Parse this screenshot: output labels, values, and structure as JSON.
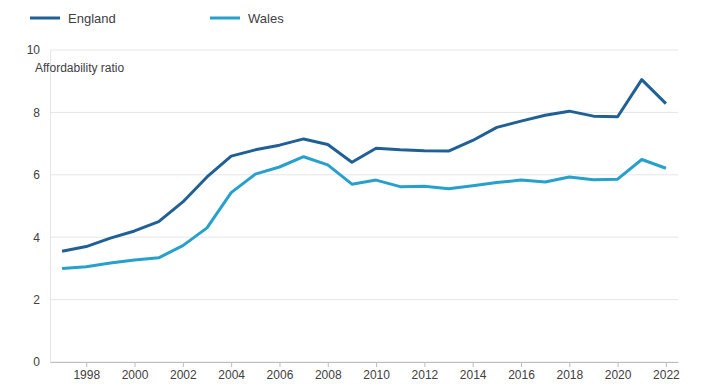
{
  "chart_data": {
    "type": "line",
    "y_label": "Affordability ratio",
    "x": [
      1997,
      1998,
      1999,
      2000,
      2001,
      2002,
      2003,
      2004,
      2005,
      2006,
      2007,
      2008,
      2009,
      2010,
      2011,
      2012,
      2013,
      2014,
      2015,
      2016,
      2017,
      2018,
      2019,
      2020,
      2021,
      2022
    ],
    "series": [
      {
        "name": "England",
        "color": "#206095",
        "values": [
          3.55,
          3.7,
          3.97,
          4.2,
          4.5,
          5.13,
          5.93,
          6.6,
          6.8,
          6.95,
          7.15,
          6.97,
          6.4,
          6.85,
          6.8,
          6.77,
          6.76,
          7.1,
          7.52,
          7.72,
          7.91,
          8.04,
          7.88,
          7.86,
          9.05,
          8.28
        ]
      },
      {
        "name": "Wales",
        "color": "#27a0cc",
        "values": [
          3.0,
          3.05,
          3.17,
          3.27,
          3.34,
          3.73,
          4.3,
          5.43,
          6.02,
          6.25,
          6.58,
          6.32,
          5.7,
          5.83,
          5.62,
          5.63,
          5.55,
          5.65,
          5.75,
          5.83,
          5.77,
          5.93,
          5.84,
          5.86,
          6.49,
          6.21
        ]
      }
    ],
    "xlim": [
      1996.5,
      2022.5
    ],
    "xticks": [
      1998,
      2000,
      2002,
      2004,
      2006,
      2008,
      2010,
      2012,
      2014,
      2016,
      2018,
      2020,
      2022
    ],
    "ylim": [
      0,
      10
    ],
    "yticks": [
      0,
      2,
      4,
      6,
      8,
      10
    ],
    "grid": true,
    "legend": "top-left"
  }
}
